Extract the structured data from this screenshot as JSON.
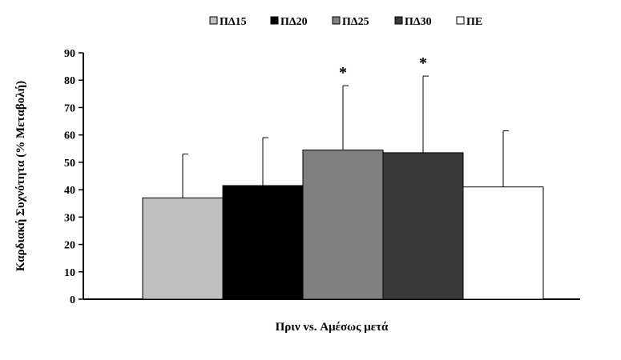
{
  "chart_data": {
    "type": "bar",
    "title": "",
    "xlabel": "Πριν vs. Αμέσως μετά",
    "ylabel": "Καρδιακή Συχνότητα (% Μεταβολή)",
    "ylim": [
      0,
      90
    ],
    "yticks": [
      "0",
      "10",
      "20",
      "30",
      "40",
      "50",
      "60",
      "70",
      "80",
      "90"
    ],
    "grid": false,
    "legend_position": "top",
    "categories": [
      "Πριν vs. Αμέσως μετά"
    ],
    "series": [
      {
        "name": "ΠΔ15",
        "values": [
          37
        ],
        "error": [
          16
        ],
        "color": "#c0c0c0",
        "marker": ""
      },
      {
        "name": "ΠΔ20",
        "values": [
          41.5
        ],
        "error": [
          17.5
        ],
        "color": "#000000",
        "marker": ""
      },
      {
        "name": "ΠΔ25",
        "values": [
          54.5
        ],
        "error": [
          23.5
        ],
        "color": "#808080",
        "marker": "*"
      },
      {
        "name": "ΠΔ30",
        "values": [
          53.5
        ],
        "error": [
          28
        ],
        "color": "#3a3a3a",
        "marker": "*"
      },
      {
        "name": "ΠΕ",
        "values": [
          41
        ],
        "error": [
          20.5
        ],
        "color": "#ffffff",
        "marker": ""
      }
    ]
  }
}
